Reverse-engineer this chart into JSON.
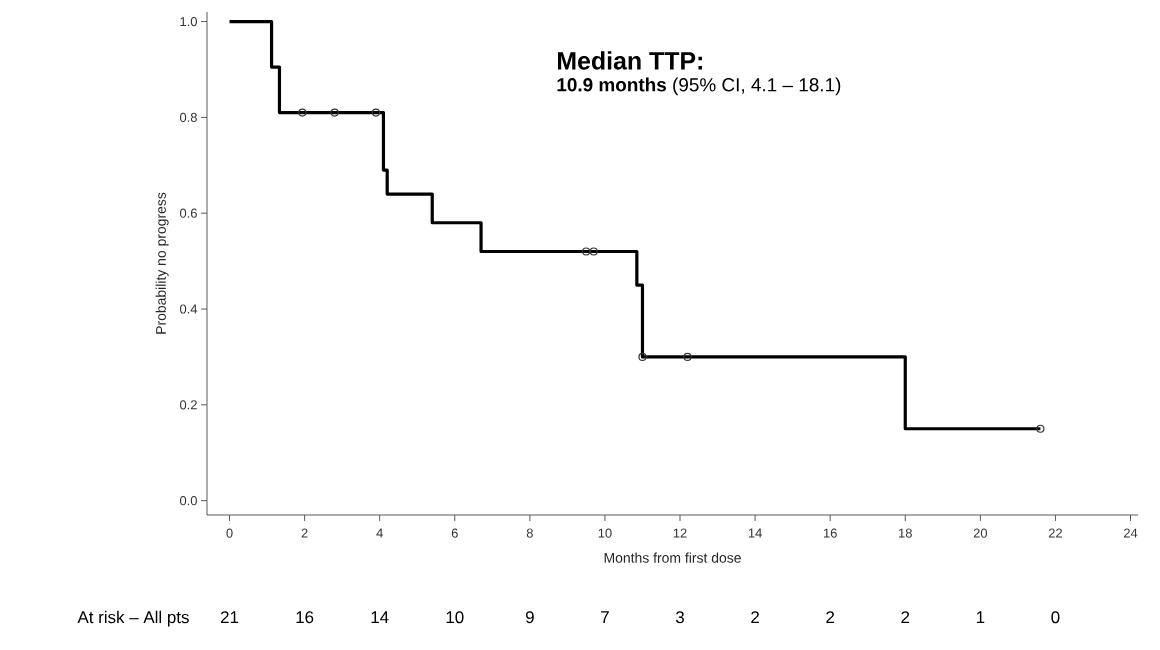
{
  "chart_data": {
    "type": "step",
    "xlabel": "Months from first dose",
    "ylabel": "Probability no progress",
    "xlim": [
      -0.6,
      24.2
    ],
    "ylim": [
      -0.03,
      1.02
    ],
    "xticks": [
      0,
      2,
      4,
      6,
      8,
      10,
      12,
      14,
      16,
      18,
      20,
      22,
      24
    ],
    "yticks": [
      {
        "value": 0,
        "label": "0.0"
      },
      {
        "value": 0.2,
        "label": "0.2"
      },
      {
        "value": 0.4,
        "label": "0.4"
      },
      {
        "value": 0.6,
        "label": "0.6"
      },
      {
        "value": 0.8,
        "label": "0.8"
      },
      {
        "value": 1,
        "label": "1.0"
      }
    ],
    "grid": false,
    "series": [
      {
        "color": "#000000",
        "marker": "none",
        "x": [
          0,
          1.12,
          1.33,
          4.1,
          4.2,
          5.4,
          6.7,
          10.85,
          11.0,
          18.0,
          21.6
        ],
        "values": [
          1,
          0.905,
          0.81,
          0.69,
          0.64,
          0.58,
          0.52,
          0.45,
          0.3,
          0.15,
          0.15
        ]
      },
      {
        "type": "scatter",
        "color": "#333333",
        "marker": "circle",
        "x": [
          1.94,
          2.8,
          3.9,
          9.5,
          9.7,
          11.0,
          12.2,
          21.6
        ],
        "values": [
          0.81,
          0.81,
          0.81,
          0.52,
          0.52,
          0.3,
          0.3,
          0.15
        ]
      }
    ],
    "annotations": [
      "Median TTP:",
      "**10.9 months** (95% CI, 4.1 – 18.1)",
      "At risk – All pts",
      "21",
      "16",
      "14",
      "10",
      "9",
      "7",
      "3",
      "2",
      "2",
      "2",
      "1",
      "0"
    ]
  }
}
